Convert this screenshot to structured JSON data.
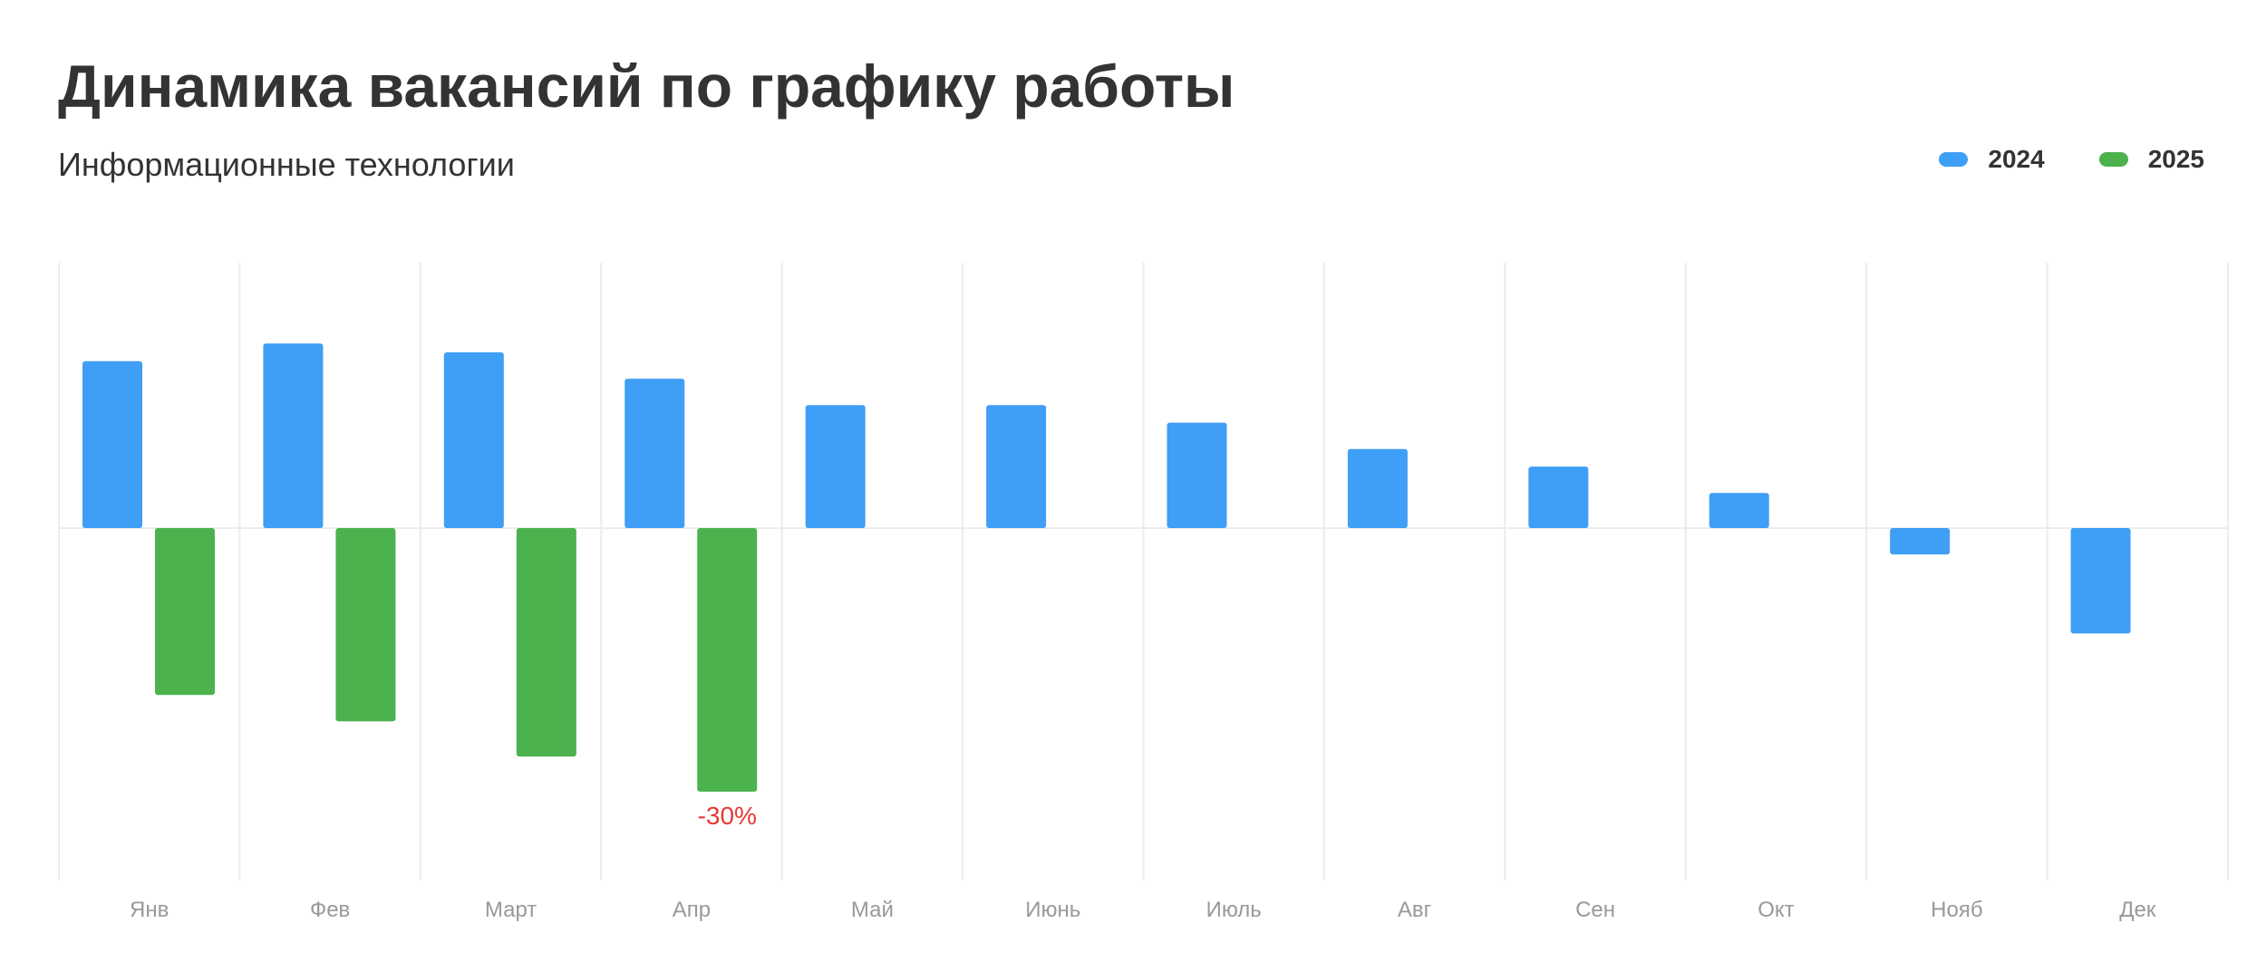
{
  "chart_data": {
    "type": "bar",
    "title": "Динамика вакансий по графику работы",
    "subtitle": "Информационные технологии",
    "categories": [
      "Янв",
      "Фев",
      "Март",
      "Апр",
      "Май",
      "Июнь",
      "Июль",
      "Авг",
      "Сен",
      "Окт",
      "Нояб",
      "Дек"
    ],
    "series": [
      {
        "name": "2024",
        "color": "#3f9ef5",
        "values": [
          19,
          21,
          20,
          17,
          14,
          14,
          12,
          9,
          7,
          4,
          -3,
          -12
        ]
      },
      {
        "name": "2025",
        "color": "#4bb24e",
        "values": [
          -19,
          -22,
          -26,
          -30,
          null,
          null,
          null,
          null,
          null,
          null,
          null,
          null
        ]
      }
    ],
    "annotations": [
      {
        "series": 1,
        "category": "Апр",
        "text": "-30%",
        "color": "#e53935"
      }
    ],
    "ylim": [
      -40,
      30
    ],
    "grid": true,
    "legend_position": "top-right",
    "xlabel": "",
    "ylabel": ""
  }
}
